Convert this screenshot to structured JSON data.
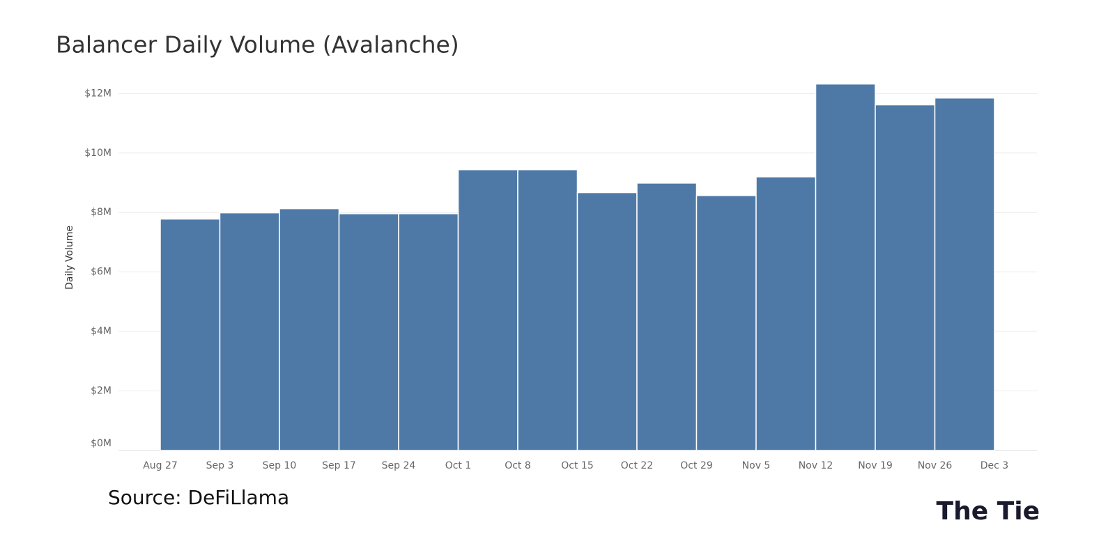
{
  "chart_data": {
    "type": "histogram",
    "title": "Balancer Daily Volume (Avalanche)",
    "y_label": "Daily Volume",
    "source": "Source: DeFiLlama",
    "logo": "The Tie",
    "bins": [
      "Aug 27",
      "Sep 3",
      "Sep 10",
      "Sep 17",
      "Sep 24",
      "Oct 1",
      "Oct 8",
      "Oct 15",
      "Oct 22",
      "Oct 29",
      "Nov 5",
      "Nov 12",
      "Nov 19",
      "Nov 26",
      "Dec 3"
    ],
    "values": [
      7780000,
      7990000,
      8130000,
      7960000,
      7960000,
      9440000,
      9440000,
      8670000,
      8990000,
      8570000,
      9200000,
      12320000,
      11620000,
      11850000
    ],
    "color": "#4e79a7",
    "ylim": [
      0,
      12850000
    ],
    "yticks": [
      {
        "value": 0,
        "label": "$0M"
      },
      {
        "value": 2000000,
        "label": "$2M"
      },
      {
        "value": 4000000,
        "label": "$4M"
      },
      {
        "value": 6000000,
        "label": "$6M"
      },
      {
        "value": 8000000,
        "label": "$8M"
      },
      {
        "value": 10000000,
        "label": "$10M"
      },
      {
        "value": 12000000,
        "label": "$12M"
      }
    ],
    "grid": true
  }
}
